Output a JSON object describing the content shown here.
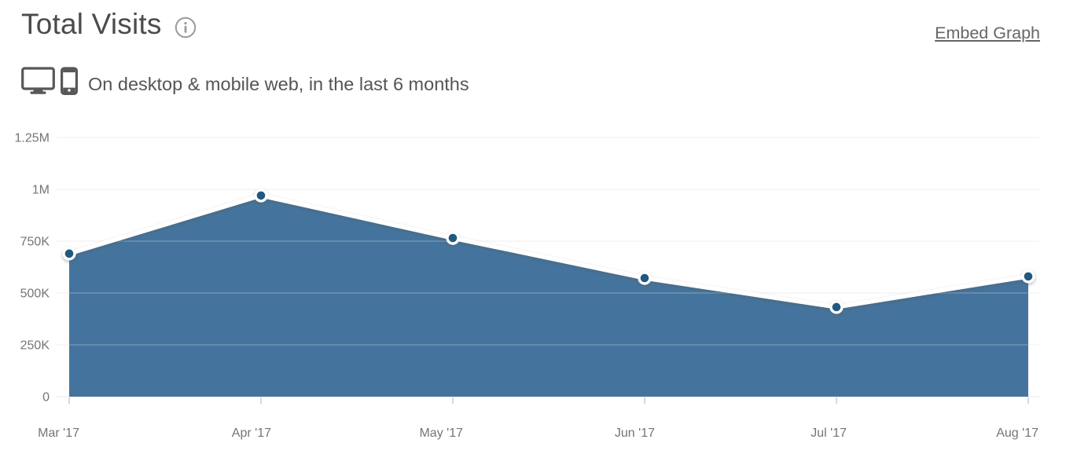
{
  "header": {
    "title": "Total Visits",
    "embed_link": "Embed Graph",
    "subtitle": "On desktop & mobile web, in the last 6 months",
    "icons": [
      "desktop-icon",
      "mobile-icon",
      "info-icon"
    ]
  },
  "colors": {
    "area_fill": "#44749D",
    "line": "#FFFFFF",
    "marker_fill": "#21587F",
    "marker_ring": "#FFFFFF",
    "gridline": "#E7E7E7",
    "gridline_over_area": "rgba(255,255,255,0.35)",
    "axis_tick": "#C5D0D8",
    "axis_text": "#757575",
    "title_text": "#4B4B4B",
    "subtitle_text": "#555555",
    "link_text": "#666666",
    "icon_stroke": "#58585A",
    "info_icon": "#9B9B9B"
  },
  "chart_data": {
    "type": "area",
    "title": "Total Visits",
    "categories": [
      "Mar '17",
      "Apr '17",
      "May '17",
      "Jun '17",
      "Jul '17",
      "Aug '17"
    ],
    "series": [
      {
        "name": "Total Visits",
        "values": [
          690000,
          970000,
          765000,
          572000,
          432000,
          580000
        ]
      }
    ],
    "xlabel": "",
    "ylabel": "",
    "ylim": [
      0,
      1250000
    ],
    "yticks": [
      {
        "value": 0,
        "label": "0"
      },
      {
        "value": 250000,
        "label": "250K"
      },
      {
        "value": 500000,
        "label": "500K"
      },
      {
        "value": 750000,
        "label": "750K"
      },
      {
        "value": 1000000,
        "label": "1M"
      },
      {
        "value": 1250000,
        "label": "1.25M"
      }
    ],
    "grid": "horizontal",
    "legend": "none"
  }
}
